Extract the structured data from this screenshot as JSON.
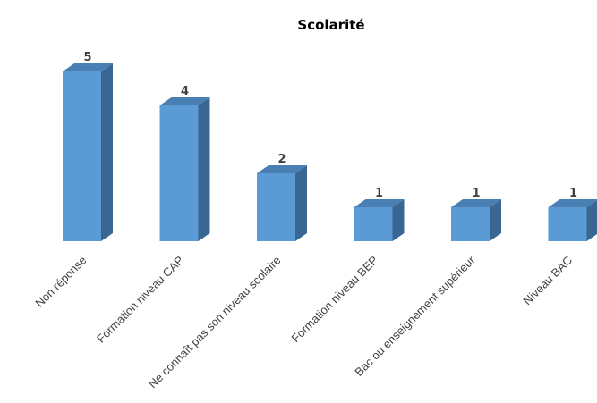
{
  "chart_data": {
    "type": "bar",
    "title": "Scolarité",
    "categories": [
      "Non réponse",
      "Formation niveau CAP",
      "Ne connaît pas son niveau scolaire",
      "Formation niveau BEP",
      "Bac ou enseignement supérieur",
      "Niveau BAC"
    ],
    "values": [
      5,
      4,
      2,
      1,
      1,
      1
    ],
    "data_labels": [
      "5",
      "4",
      "2",
      "1",
      "1",
      "1"
    ],
    "ylim": [
      0,
      5
    ],
    "grid": false,
    "legend": "none",
    "style": "3d-column",
    "colors": {
      "front": "#5b9bd5",
      "side": "#3a6791",
      "top": "#4a7fb3"
    }
  }
}
